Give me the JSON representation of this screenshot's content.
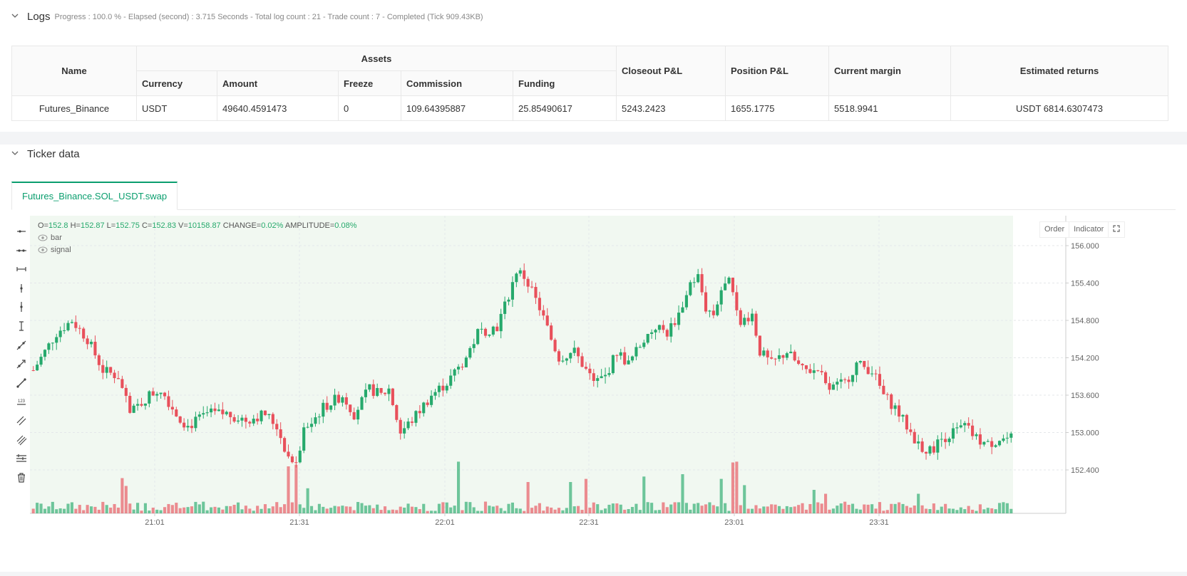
{
  "logs": {
    "title": "Logs",
    "meta": "Progress : 100.0 % - Elapsed (second) : 3.715  Seconds - Total log count : 21 - Trade count : 7 - Completed (Tick 909.43KB)"
  },
  "assets_table": {
    "headers": {
      "name": "Name",
      "assets": "Assets",
      "currency": "Currency",
      "amount": "Amount",
      "freeze": "Freeze",
      "commission": "Commission",
      "funding": "Funding",
      "closeout_pnl": "Closeout P&L",
      "position_pnl": "Position P&L",
      "current_margin": "Current margin",
      "estimated_returns": "Estimated returns"
    },
    "row": {
      "name": "Futures_Binance",
      "currency": "USDT",
      "amount": "49640.4591473",
      "freeze": "0",
      "commission": "109.64395887",
      "funding": "25.85490617",
      "closeout_pnl": "5243.2423",
      "position_pnl": "1655.1775",
      "current_margin": "5518.9941",
      "estimated_returns": "USDT 6814.6307473"
    }
  },
  "ticker": {
    "title": "Ticker data",
    "tab": "Futures_Binance.SOL_USDT.swap",
    "ohlc": {
      "o_label": "O=",
      "o": "152.8",
      "h_label": "H=",
      "h": "152.87",
      "l_label": "L=",
      "l": "152.75",
      "c_label": "C=",
      "c": "152.83",
      "v_label": "V=",
      "v": "10158.87",
      "change_label": "CHANGE=",
      "change": "0.02%",
      "amp_label": "AMPLITUDE=",
      "amp": "0.08%"
    },
    "legend": [
      "bar",
      "signal"
    ],
    "buttons": {
      "order": "Order",
      "indicator": "Indicator"
    }
  },
  "toolbar_icons": [
    "horizontal-ray-icon",
    "horizontal-line-icon",
    "horizontal-segment-icon",
    "vertical-ray-icon",
    "vertical-line-icon",
    "vertical-segment-icon",
    "trend-line-icon",
    "arrow-line-icon",
    "extended-line-icon",
    "price-label-icon",
    "parallel-channel-icon",
    "fibonacci-icon",
    "level-lines-icon",
    "trash-icon"
  ],
  "colors": {
    "up": "#26a96c",
    "down": "#e8505b",
    "accent": "#0a9e6e",
    "plot_bg": "#f1f8f1"
  },
  "chart_data": {
    "type": "candlestick",
    "ylim": [
      151.7,
      156.5
    ],
    "y_ticks": [
      "156.000",
      "155.400",
      "154.800",
      "154.200",
      "153.600",
      "153.000",
      "152.400"
    ],
    "x_ticks": [
      "21:01",
      "21:31",
      "22:01",
      "22:31",
      "23:01",
      "23:31"
    ],
    "anchors": [
      [
        0,
        154.0
      ],
      [
        6,
        154.6
      ],
      [
        10,
        154.8
      ],
      [
        14,
        154.5
      ],
      [
        18,
        154.0
      ],
      [
        22,
        153.9
      ],
      [
        25,
        153.3
      ],
      [
        30,
        153.6
      ],
      [
        33,
        153.7
      ],
      [
        37,
        153.3
      ],
      [
        40,
        153.1
      ],
      [
        45,
        153.3
      ],
      [
        50,
        153.3
      ],
      [
        55,
        153.2
      ],
      [
        60,
        153.3
      ],
      [
        63,
        153.1
      ],
      [
        66,
        152.6
      ],
      [
        68,
        152.5
      ],
      [
        70,
        153.0
      ],
      [
        75,
        153.4
      ],
      [
        80,
        153.6
      ],
      [
        83,
        153.3
      ],
      [
        87,
        153.7
      ],
      [
        90,
        153.6
      ],
      [
        92,
        153.7
      ],
      [
        95,
        153.0
      ],
      [
        98,
        153.2
      ],
      [
        103,
        153.6
      ],
      [
        107,
        153.8
      ],
      [
        112,
        154.2
      ],
      [
        115,
        154.6
      ],
      [
        120,
        154.7
      ],
      [
        123,
        155.2
      ],
      [
        125,
        155.6
      ],
      [
        127,
        155.5
      ],
      [
        131,
        155.0
      ],
      [
        134,
        154.5
      ],
      [
        136,
        154.2
      ],
      [
        140,
        154.3
      ],
      [
        142,
        154.1
      ],
      [
        145,
        153.8
      ],
      [
        148,
        153.9
      ],
      [
        151,
        154.3
      ],
      [
        154,
        154.1
      ],
      [
        158,
        154.5
      ],
      [
        161,
        154.7
      ],
      [
        164,
        154.6
      ],
      [
        167,
        154.9
      ],
      [
        170,
        155.4
      ],
      [
        172,
        155.5
      ],
      [
        174,
        155.0
      ],
      [
        176,
        154.9
      ],
      [
        178,
        155.3
      ],
      [
        180,
        155.4
      ],
      [
        183,
        154.8
      ],
      [
        186,
        154.9
      ],
      [
        188,
        154.3
      ],
      [
        191,
        154.1
      ],
      [
        195,
        154.3
      ],
      [
        199,
        154.0
      ],
      [
        203,
        154.0
      ],
      [
        206,
        153.7
      ],
      [
        210,
        153.8
      ],
      [
        213,
        154.1
      ],
      [
        217,
        154.0
      ],
      [
        220,
        153.6
      ],
      [
        223,
        153.4
      ],
      [
        226,
        153.1
      ],
      [
        229,
        152.8
      ],
      [
        232,
        152.7
      ],
      [
        235,
        152.9
      ],
      [
        238,
        153.0
      ],
      [
        241,
        153.1
      ],
      [
        244,
        152.9
      ],
      [
        247,
        152.8
      ],
      [
        250,
        152.9
      ],
      [
        253,
        152.9
      ]
    ],
    "volume_spikes": [
      [
        23,
        0.45
      ],
      [
        24,
        0.35
      ],
      [
        66,
        0.6
      ],
      [
        68,
        0.62
      ],
      [
        71,
        0.32
      ],
      [
        110,
        0.66
      ],
      [
        128,
        0.4
      ],
      [
        139,
        0.4
      ],
      [
        143,
        0.44
      ],
      [
        158,
        0.47
      ],
      [
        168,
        0.5
      ],
      [
        178,
        0.44
      ],
      [
        181,
        0.65
      ],
      [
        182,
        0.66
      ],
      [
        184,
        0.36
      ],
      [
        202,
        0.3
      ],
      [
        205,
        0.25
      ],
      [
        229,
        0.25
      ]
    ]
  }
}
